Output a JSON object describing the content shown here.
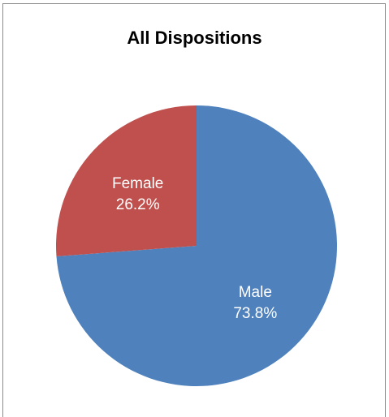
{
  "chart_data": {
    "type": "pie",
    "title": "All Dispositions",
    "categories": [
      "Male",
      "Female"
    ],
    "values": [
      73.8,
      26.2
    ],
    "value_labels": [
      "73.8%",
      "26.2%"
    ],
    "colors": [
      "#4f81bd",
      "#c0504d"
    ],
    "start": "12 o'clock",
    "direction": "clockwise",
    "legend": "none"
  }
}
